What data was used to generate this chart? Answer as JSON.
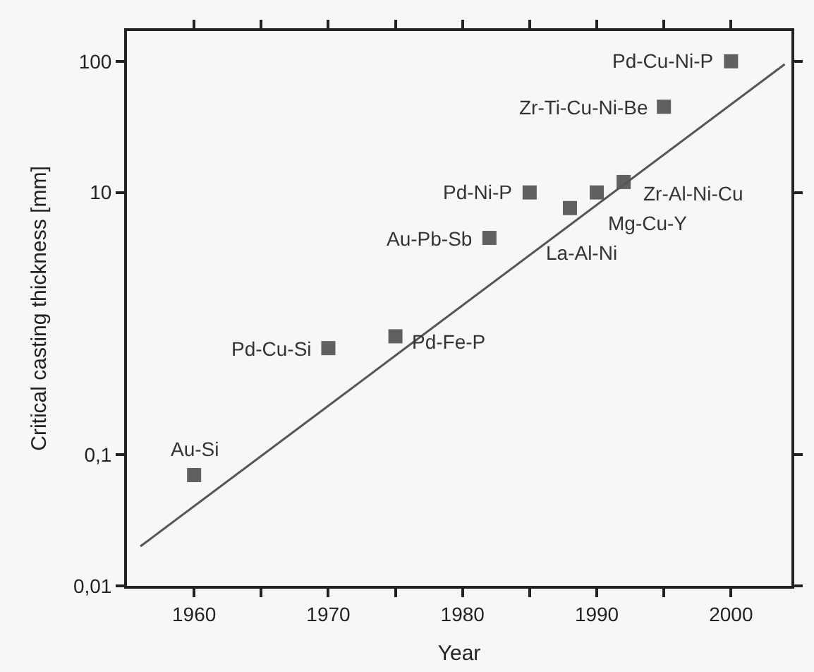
{
  "chart_data": {
    "type": "scatter",
    "xlabel": "Year",
    "ylabel": "Critical casting thickness [mm]",
    "log": "y",
    "grid": false,
    "xlim": [
      1955,
      2004.5
    ],
    "xticks": [
      1960,
      {
        "value": 1965,
        "label": null
      },
      1970,
      {
        "value": 1975,
        "label": null
      },
      1980,
      {
        "value": 1985,
        "label": null
      },
      1990,
      {
        "value": 1995,
        "label": null
      },
      2000
    ],
    "ylim": [
      0.01,
      170
    ],
    "yticks": [
      {
        "value": 0.01,
        "label": "0,01"
      },
      {
        "value": 0.1,
        "label": "0,1"
      },
      10,
      100
    ],
    "series": [
      {
        "marker": "square",
        "color": "#606060",
        "x": [
          1960,
          1970,
          1975,
          1982,
          1985,
          1988,
          1990,
          1992,
          1995,
          2000
        ],
        "values": [
          0.07,
          0.65,
          0.8,
          4.5,
          10,
          7.6,
          10,
          12,
          45,
          100
        ],
        "value_labels": [
          "Au-Si",
          "Pd-Cu-Si",
          "Pd-Fe-P",
          "Au-Pb-Sb",
          "Pd-Ni-P",
          "La-Al-Ni",
          "Mg-Cu-Y",
          "Zr-Al-Ni-Cu",
          "Zr-Ti-Cu-Ni-Be",
          "Pd-Cu-Ni-P"
        ]
      },
      {
        "type": "line",
        "marker": "none",
        "color": "#555555",
        "x": [
          1956,
          2004
        ],
        "values": [
          0.02,
          95
        ]
      }
    ]
  }
}
